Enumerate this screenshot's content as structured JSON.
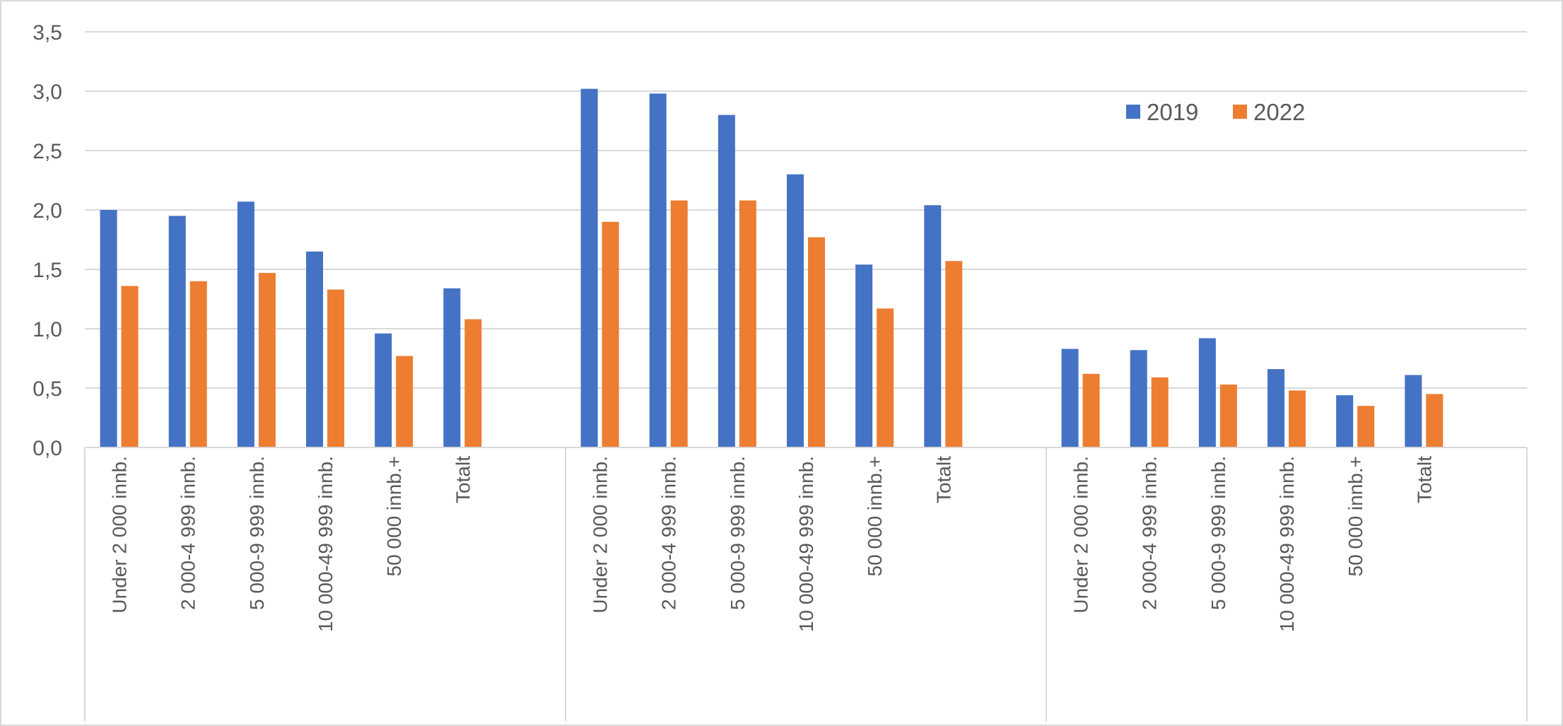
{
  "chart_data": {
    "type": "bar",
    "title": "",
    "xlabel": "",
    "ylabel": "",
    "ylim": [
      0,
      3.5
    ],
    "yticks": [
      "0,0",
      "0,5",
      "1,0",
      "1,5",
      "2,0",
      "2,5",
      "3,0",
      "3,5"
    ],
    "grid": true,
    "legend_position": "top-right",
    "categories": [
      "Under 2 000 innb.",
      "2 000-4 999 innb.",
      "5 000-9 999 innb.",
      "10 000-49 999 innb.",
      "50 000 innb.+",
      "Totalt"
    ],
    "groups": [
      {
        "series": [
          {
            "name": "2019",
            "values": [
              2.0,
              1.95,
              2.07,
              1.65,
              0.96,
              1.34
            ]
          },
          {
            "name": "2022",
            "values": [
              1.36,
              1.4,
              1.47,
              1.33,
              0.77,
              1.08
            ]
          }
        ]
      },
      {
        "series": [
          {
            "name": "2019",
            "values": [
              3.02,
              2.98,
              2.8,
              2.3,
              1.54,
              2.04
            ]
          },
          {
            "name": "2022",
            "values": [
              1.9,
              2.08,
              2.08,
              1.77,
              1.17,
              1.57
            ]
          }
        ]
      },
      {
        "series": [
          {
            "name": "2019",
            "values": [
              0.83,
              0.82,
              0.92,
              0.66,
              0.44,
              0.61
            ]
          },
          {
            "name": "2022",
            "values": [
              0.62,
              0.59,
              0.53,
              0.48,
              0.35,
              0.45
            ]
          }
        ]
      }
    ],
    "legend": [
      {
        "name": "2019",
        "color": "#4472C4"
      },
      {
        "name": "2022",
        "color": "#ED7D31"
      }
    ]
  }
}
